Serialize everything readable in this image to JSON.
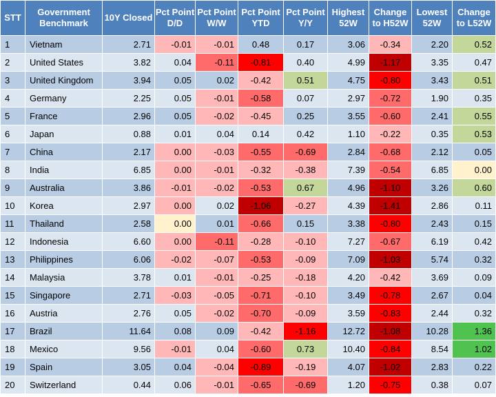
{
  "columns": [
    "STT",
    "Government Benchmark",
    "10Y Closed",
    "Pct Point D/D",
    "Pct Point W/W",
    "Pct Point YTD",
    "Pct Point Y/Y",
    "Highest 52W",
    "Change to H52W",
    "Lowest 52W",
    "Change to L52W"
  ],
  "colors": {
    "header_bg": "#4f81bd",
    "row_blue": "#b8cce4",
    "row_light": "#dce6f1",
    "neg_light": "#ffb7b7",
    "neg_mid": "#ff6a6a",
    "neg_strong": "#ff0000",
    "neg_dark": "#c00000",
    "pos_light": "#c4d79b",
    "pos_strong": "#4fc24f",
    "neutral_light": "#fff2cc"
  },
  "rows": [
    {
      "cells": [
        "1",
        "Vietnam",
        "2.71",
        "-0.01",
        "-0.01",
        "0.48",
        "0.17",
        "3.06",
        "-0.34",
        "2.20",
        "0.52"
      ]
    },
    {
      "cells": [
        "2",
        "United States",
        "3.82",
        "0.04",
        "-0.11",
        "-0.81",
        "0.40",
        "4.99",
        "-1.17",
        "3.35",
        "0.47"
      ]
    },
    {
      "cells": [
        "3",
        "United Kingdom",
        "3.94",
        "0.05",
        "0.02",
        "-0.42",
        "0.51",
        "4.75",
        "-0.80",
        "3.43",
        "0.51"
      ]
    },
    {
      "cells": [
        "4",
        "Germany",
        "2.25",
        "0.05",
        "-0.01",
        "-0.58",
        "0.07",
        "2.97",
        "-0.72",
        "1.90",
        "0.35"
      ]
    },
    {
      "cells": [
        "5",
        "France",
        "2.96",
        "0.05",
        "-0.02",
        "-0.45",
        "0.25",
        "3.55",
        "-0.60",
        "2.41",
        "0.55"
      ]
    },
    {
      "cells": [
        "6",
        "Japan",
        "0.88",
        "0.01",
        "0.04",
        "0.14",
        "0.42",
        "1.10",
        "-0.22",
        "0.35",
        "0.53"
      ]
    },
    {
      "cells": [
        "7",
        "China",
        "2.17",
        "0.00",
        "-0.03",
        "-0.55",
        "-0.69",
        "2.84",
        "-0.68",
        "2.12",
        "0.05"
      ]
    },
    {
      "cells": [
        "8",
        "India",
        "6.85",
        "0.00",
        "-0.01",
        "-0.32",
        "-0.38",
        "7.39",
        "-0.54",
        "6.85",
        "0.00"
      ]
    },
    {
      "cells": [
        "9",
        "Australia",
        "3.86",
        "-0.01",
        "-0.02",
        "-0.53",
        "0.67",
        "4.96",
        "-1.10",
        "3.26",
        "0.60"
      ]
    },
    {
      "cells": [
        "10",
        "Korea",
        "2.97",
        "0.00",
        "0.02",
        "-1.06",
        "-0.27",
        "4.39",
        "-1.41",
        "2.86",
        "0.11"
      ]
    },
    {
      "cells": [
        "11",
        "Thailand",
        "2.58",
        "0.00",
        "0.01",
        "-0.66",
        "0.15",
        "3.38",
        "-0.80",
        "2.43",
        "0.15"
      ]
    },
    {
      "cells": [
        "12",
        "Indonesia",
        "6.60",
        "0.00",
        "-0.11",
        "-0.28",
        "-0.10",
        "7.27",
        "-0.67",
        "6.19",
        "0.42"
      ]
    },
    {
      "cells": [
        "13",
        "Philippines",
        "6.06",
        "-0.02",
        "-0.07",
        "-0.53",
        "-0.09",
        "7.09",
        "-1.03",
        "5.74",
        "0.32"
      ]
    },
    {
      "cells": [
        "14",
        "Malaysia",
        "3.78",
        "0.01",
        "-0.01",
        "-0.25",
        "-0.18",
        "4.20",
        "-0.42",
        "3.69",
        "0.09"
      ]
    },
    {
      "cells": [
        "15",
        "Singapore",
        "2.71",
        "-0.03",
        "-0.05",
        "-0.71",
        "-0.10",
        "3.49",
        "-0.78",
        "2.67",
        "0.04"
      ]
    },
    {
      "cells": [
        "16",
        "Austria",
        "2.76",
        "0.05",
        "-0.02",
        "-0.70",
        "-0.09",
        "3.59",
        "-0.83",
        "2.44",
        "0.32"
      ]
    },
    {
      "cells": [
        "17",
        "Brazil",
        "11.64",
        "0.08",
        "0.09",
        "-0.42",
        "-1.16",
        "12.72",
        "-1.08",
        "10.28",
        "1.36"
      ]
    },
    {
      "cells": [
        "18",
        "Mexico",
        "9.56",
        "-0.01",
        "0.04",
        "-0.60",
        "0.73",
        "10.40",
        "-0.84",
        "8.54",
        "1.02"
      ]
    },
    {
      "cells": [
        "19",
        "Spain",
        "3.05",
        "0.04",
        "-0.04",
        "-0.89",
        "-0.19",
        "4.07",
        "-1.02",
        "2.83",
        "0.22"
      ]
    },
    {
      "cells": [
        "20",
        "Switzerland",
        "0.44",
        "0.06",
        "-0.01",
        "-0.65",
        "-0.69",
        "1.20",
        "-0.75",
        "0.38",
        "0.07"
      ]
    }
  ]
}
